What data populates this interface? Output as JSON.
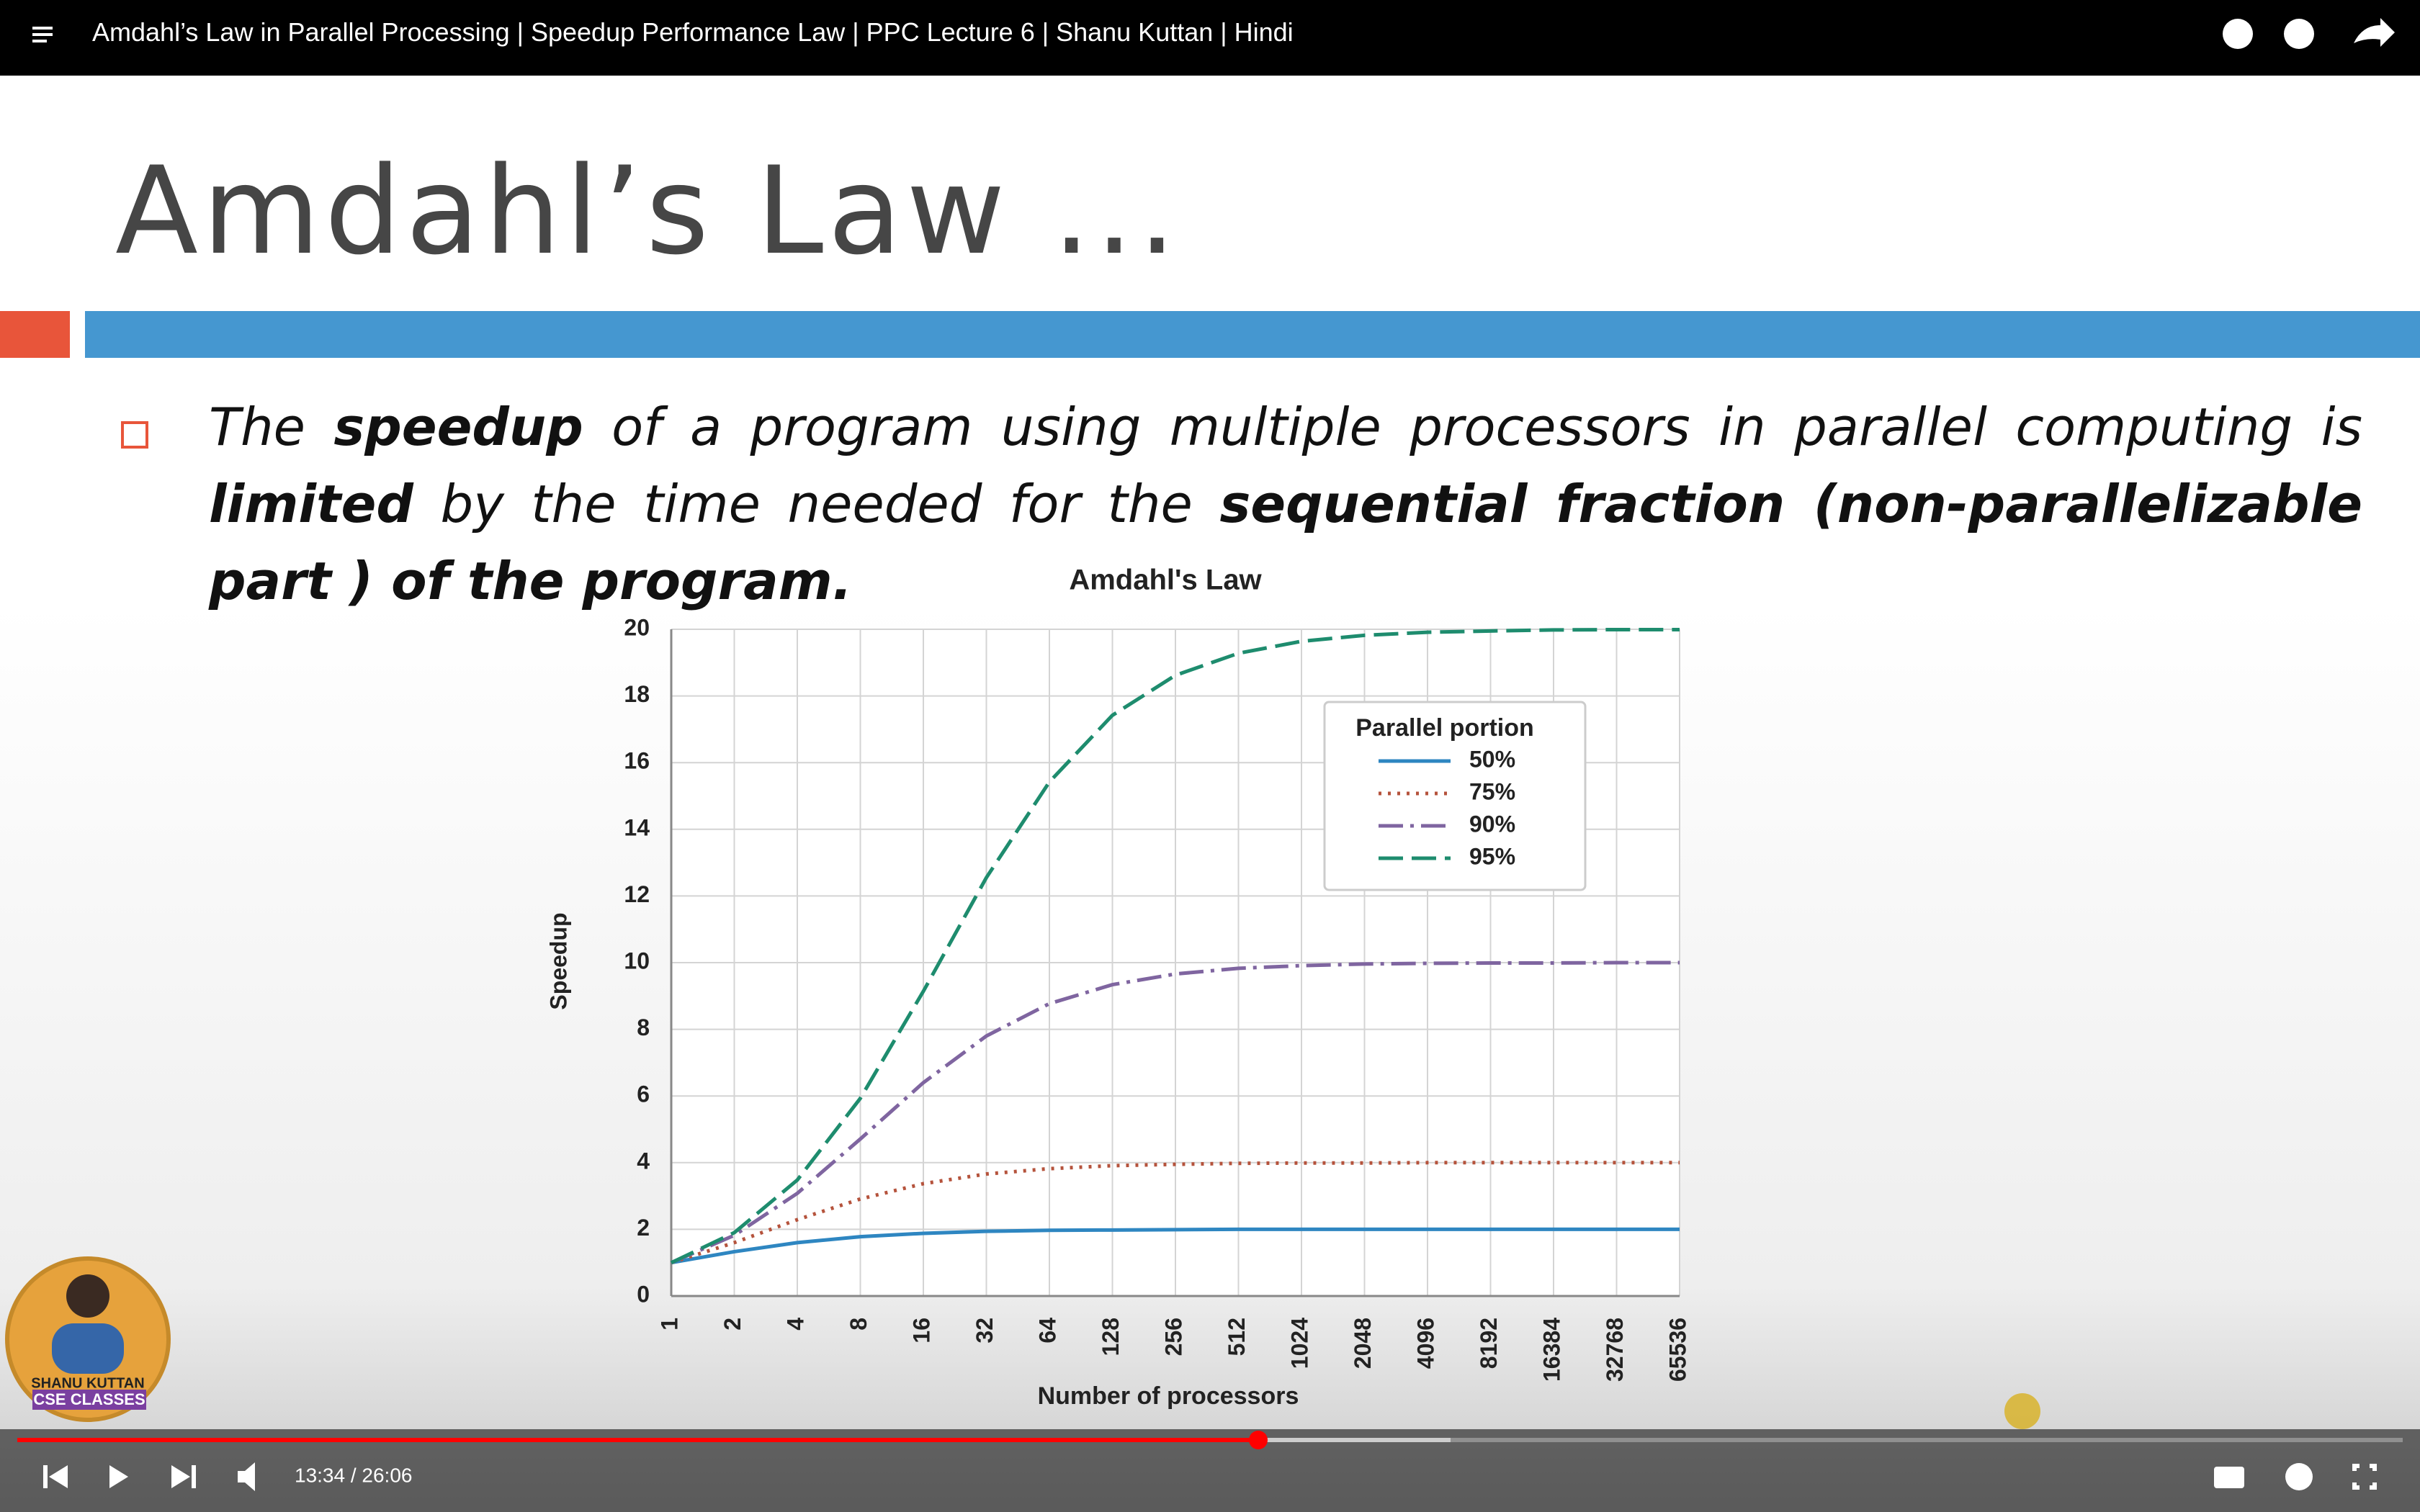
{
  "player": {
    "video_title": "Amdahl’s Law in Parallel Processing | Speedup Performance Law | PPC Lecture 6 | Shanu Kuttan | Hindi",
    "time": "13:34 / 26:06"
  },
  "slide": {
    "title": "Amdahl’s Law ...",
    "bullet": [
      "The",
      "speedup",
      "of a program using multiple processors in parallel computing is",
      "limited",
      "by the time needed for the",
      "sequential fraction (non-parallelizable part ) of the program."
    ],
    "avatar": [
      "SHANU KUTTAN",
      "CSE CLASSES"
    ]
  },
  "chart_data": {
    "type": "line",
    "title": "Amdahl's Law",
    "x_label": "Number of processors",
    "y_label": "Speedup",
    "categories": [
      "1",
      "2",
      "4",
      "8",
      "16",
      "32",
      "64",
      "128",
      "256",
      "512",
      "1024",
      "2048",
      "4096",
      "8192",
      "16384",
      "32768",
      "65536"
    ],
    "ylim": [
      0,
      20
    ],
    "yticks": [
      0,
      2,
      4,
      6,
      8,
      10,
      12,
      14,
      16,
      18,
      20
    ],
    "grid": true,
    "legend_title": "Parallel portion",
    "legend": "upper right",
    "series": [
      {
        "name": "50%",
        "color": "#2e86c1",
        "style": "solid",
        "values": [
          1,
          1.33,
          1.6,
          1.78,
          1.88,
          1.94,
          1.97,
          1.98,
          1.99,
          2,
          2,
          2,
          2,
          2,
          2,
          2,
          2
        ]
      },
      {
        "name": "75%",
        "color": "#b5533c",
        "style": "dotted",
        "values": [
          1,
          1.6,
          2.29,
          2.91,
          3.37,
          3.66,
          3.82,
          3.91,
          3.95,
          3.98,
          3.99,
          3.99,
          4,
          4,
          4,
          4,
          4
        ]
      },
      {
        "name": "90%",
        "color": "#7f65a0",
        "style": "dashdot",
        "values": [
          1,
          1.82,
          3.08,
          4.71,
          6.4,
          7.8,
          8.77,
          9.34,
          9.66,
          9.83,
          9.91,
          9.96,
          9.98,
          9.99,
          9.99,
          10,
          10
        ]
      },
      {
        "name": "95%",
        "color": "#1e8c6e",
        "style": "dashed",
        "values": [
          1,
          1.9,
          3.48,
          5.93,
          9.14,
          12.55,
          15.42,
          17.42,
          18.62,
          19.28,
          19.64,
          19.82,
          19.91,
          19.95,
          19.98,
          19.99,
          19.99
        ]
      }
    ]
  }
}
